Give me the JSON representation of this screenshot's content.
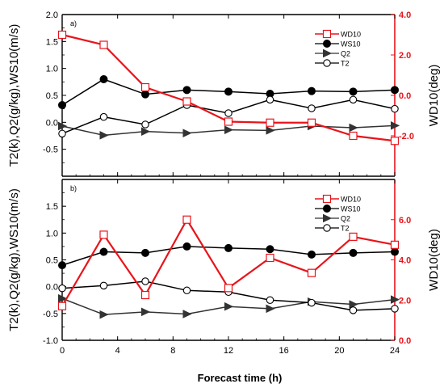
{
  "chart_data": [
    {
      "type": "line",
      "panel_label": "a)",
      "xlabel": "Forecast time (h)",
      "ylabel_left": "T2(k),Q2(g/kg),WS10(m/s)",
      "ylabel_right": "WD10(deg)",
      "x": [
        0,
        3,
        6,
        9,
        12,
        15,
        18,
        21,
        24
      ],
      "xlim": [
        0,
        24
      ],
      "xticks": [
        "0",
        "4",
        "8",
        "12",
        "16",
        "20",
        "24"
      ],
      "ylim_left": [
        -1.0,
        2.0
      ],
      "yticks_left": [
        "-0.5",
        "0.0",
        "0.5",
        "1.0",
        "1.5",
        "2.0"
      ],
      "ylim_right": [
        -4.0,
        4.0
      ],
      "yticks_right": [
        "-2.0",
        "0.0",
        "2.0",
        "4.0"
      ],
      "legend_position": "top-right",
      "series": [
        {
          "name": "WD10",
          "axis": "right",
          "marker": "square",
          "color": "#e8141b",
          "values": [
            3.0,
            2.5,
            0.4,
            -0.3,
            -1.3,
            -1.35,
            -1.35,
            -2.0,
            -2.25
          ]
        },
        {
          "name": "WS10",
          "axis": "left",
          "marker": "filled-circle",
          "color": "#000000",
          "values": [
            0.32,
            0.8,
            0.52,
            0.6,
            0.57,
            0.53,
            0.58,
            0.57,
            0.6
          ]
        },
        {
          "name": "Q2",
          "axis": "left",
          "marker": "triangle",
          "color": "#333333",
          "values": [
            -0.07,
            -0.24,
            -0.17,
            -0.2,
            -0.14,
            -0.15,
            -0.07,
            -0.1,
            -0.06
          ]
        },
        {
          "name": "T2",
          "axis": "left",
          "marker": "open-circle",
          "color": "#000000",
          "values": [
            -0.21,
            0.1,
            -0.04,
            0.32,
            0.17,
            0.42,
            0.26,
            0.42,
            0.25
          ]
        }
      ]
    },
    {
      "type": "line",
      "panel_label": "b)",
      "xlabel": "Forecast time (h)",
      "ylabel_left": "T2(k),Q2(g/kg),WS10(m/s)",
      "ylabel_right": "WD10(deg)",
      "x": [
        0,
        3,
        6,
        9,
        12,
        15,
        18,
        21,
        24
      ],
      "xlim": [
        0,
        24
      ],
      "xticks": [
        "0",
        "4",
        "8",
        "12",
        "16",
        "20",
        "24"
      ],
      "ylim_left": [
        -1.0,
        2.0
      ],
      "yticks_left": [
        "-1.0",
        "-0.5",
        "0.0",
        "0.5",
        "1.0",
        "1.5"
      ],
      "ylim_right": [
        0.0,
        8.0
      ],
      "yticks_right": [
        "0.0",
        "2.0",
        "4.0",
        "6.0"
      ],
      "legend_position": "top-right",
      "series": [
        {
          "name": "WD10",
          "axis": "right",
          "marker": "square",
          "color": "#e8141b",
          "values": [
            1.7,
            5.25,
            2.25,
            6.0,
            2.6,
            4.1,
            3.35,
            5.15,
            4.75
          ]
        },
        {
          "name": "WS10",
          "axis": "left",
          "marker": "filled-circle",
          "color": "#000000",
          "values": [
            0.4,
            0.65,
            0.63,
            0.75,
            0.72,
            0.7,
            0.6,
            0.63,
            0.65
          ]
        },
        {
          "name": "Q2",
          "axis": "left",
          "marker": "triangle",
          "color": "#333333",
          "values": [
            -0.22,
            -0.52,
            -0.47,
            -0.51,
            -0.37,
            -0.41,
            -0.28,
            -0.33,
            -0.24
          ]
        },
        {
          "name": "T2",
          "axis": "left",
          "marker": "open-circle",
          "color": "#000000",
          "values": [
            -0.03,
            0.02,
            0.1,
            -0.07,
            -0.1,
            -0.25,
            -0.3,
            -0.44,
            -0.41
          ]
        }
      ]
    }
  ]
}
